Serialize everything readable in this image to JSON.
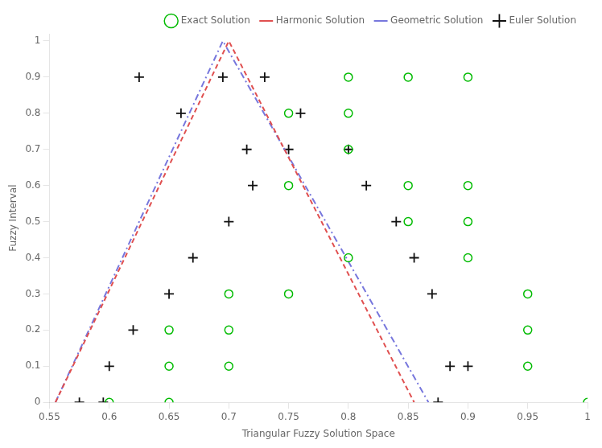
{
  "chart_data": {
    "type": "scatter",
    "xlabel": "Triangular Fuzzy Solution Space",
    "ylabel": "Fuzzy Interval",
    "xlim": [
      0.55,
      1.0
    ],
    "ylim": [
      0.0,
      1.02
    ],
    "xticks": [
      0.55,
      0.6,
      0.65,
      0.7,
      0.75,
      0.8,
      0.85,
      0.9,
      0.95,
      1
    ],
    "yticks": [
      0,
      0.1,
      0.2,
      0.3,
      0.4,
      0.5,
      0.6,
      0.7,
      0.8,
      0.9,
      1
    ],
    "grid": false,
    "legend": "upper right",
    "series": [
      {
        "name": "Exact Solution",
        "type": "scatter",
        "marker": "circle",
        "color": "#00bb00",
        "x": [
          0.6,
          0.65,
          0.65,
          0.65,
          0.7,
          0.7,
          0.7,
          0.75,
          0.75,
          0.75,
          0.8,
          0.8,
          0.8,
          0.8,
          0.85,
          0.85,
          0.85,
          0.9,
          0.9,
          0.9,
          0.9,
          0.95,
          0.95,
          0.95,
          1.0
        ],
        "values": [
          0.0,
          0.0,
          0.1,
          0.2,
          0.1,
          0.2,
          0.3,
          0.3,
          0.6,
          0.8,
          0.4,
          0.7,
          0.8,
          0.9,
          0.5,
          0.6,
          0.9,
          0.4,
          0.5,
          0.6,
          0.9,
          0.1,
          0.2,
          0.3,
          0.0
        ]
      },
      {
        "name": "Harmonic Solution",
        "type": "line",
        "line_style": "dashed",
        "color": "#e05050",
        "x": [
          0.555,
          0.7,
          0.855
        ],
        "values": [
          0.0,
          1.0,
          0.0
        ]
      },
      {
        "name": "Geometric Solution",
        "type": "line",
        "line_style": "dashdot",
        "color": "#7777dd",
        "x": [
          0.555,
          0.695,
          0.867
        ],
        "values": [
          0.0,
          1.0,
          0.0
        ]
      },
      {
        "name": "Euler Solution",
        "type": "scatter",
        "marker": "plus",
        "color": "#111111",
        "x": [
          0.575,
          0.595,
          0.6,
          0.62,
          0.625,
          0.65,
          0.66,
          0.67,
          0.695,
          0.7,
          0.715,
          0.72,
          0.73,
          0.75,
          0.76,
          0.8,
          0.815,
          0.84,
          0.855,
          0.87,
          0.875,
          0.885,
          0.9
        ],
        "values": [
          0.0,
          0.0,
          0.1,
          0.2,
          0.9,
          0.3,
          0.8,
          0.4,
          0.9,
          0.5,
          0.7,
          0.6,
          0.9,
          0.7,
          0.8,
          0.7,
          0.6,
          0.5,
          0.4,
          0.3,
          0.0,
          0.1,
          0.1
        ]
      }
    ]
  }
}
